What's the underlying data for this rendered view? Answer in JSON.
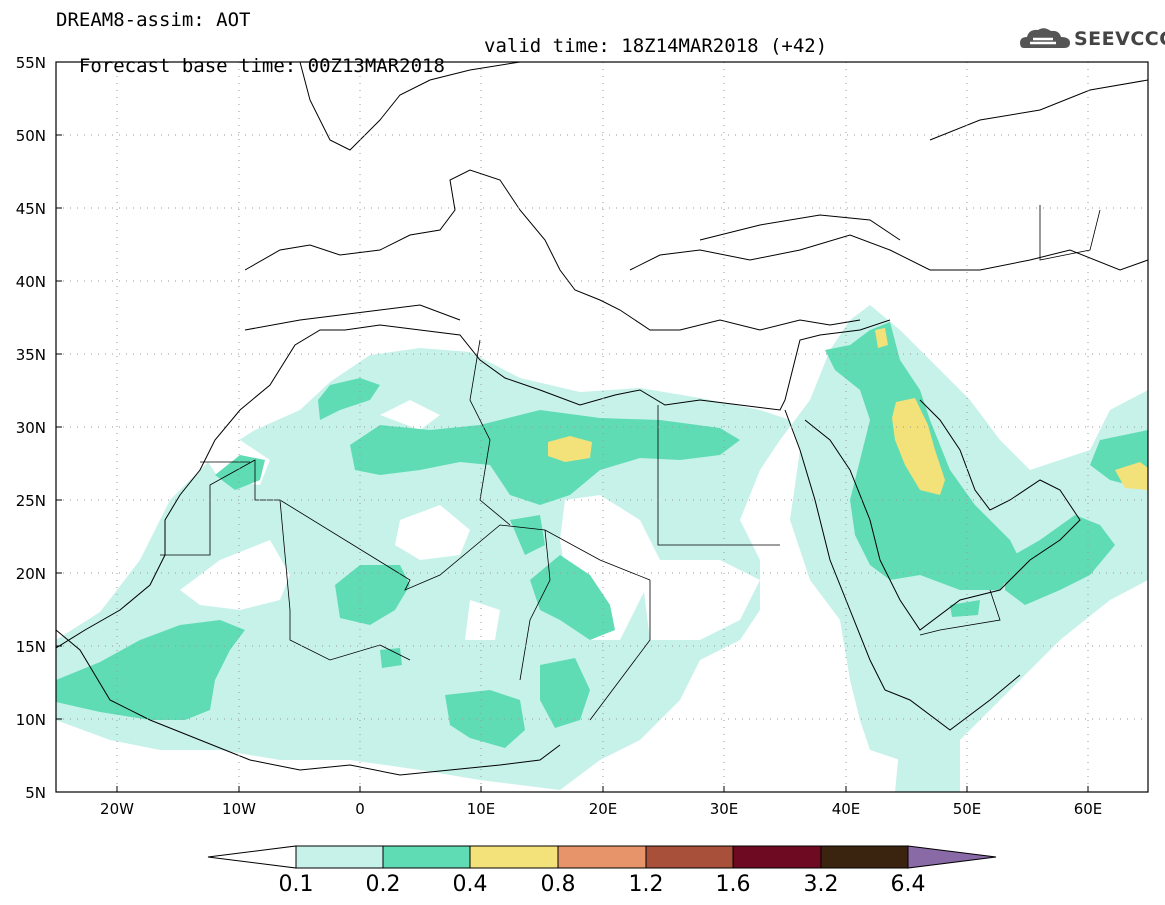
{
  "header": {
    "line1": "DREAM8-assim: AOT",
    "line2_left": "Forecast base time: 00Z13MAR2018",
    "line2_right": "valid time: 18Z14MAR2018 (+42)",
    "logo_text": "SEEVCCC"
  },
  "axes": {
    "lat_labels": [
      "55N",
      "50N",
      "45N",
      "40N",
      "35N",
      "30N",
      "25N",
      "20N",
      "15N",
      "10N",
      "5N"
    ],
    "lon_labels": [
      "20W",
      "10W",
      "0",
      "10E",
      "20E",
      "30E",
      "40E",
      "50E",
      "60E"
    ]
  },
  "colorbar": {
    "levels": [
      "0.1",
      "0.2",
      "0.4",
      "0.8",
      "1.2",
      "1.6",
      "3.2",
      "6.4"
    ],
    "colors": [
      "#c6f2ea",
      "#5fdcb4",
      "#f3e27a",
      "#e8946a",
      "#a8503a",
      "#6e0a22",
      "#3a2410",
      "#8a6aa6"
    ]
  },
  "colors": {
    "aot_0_1": "#c6f2ea",
    "aot_0_2": "#5fdcb4",
    "aot_0_4": "#f3e27a"
  }
}
